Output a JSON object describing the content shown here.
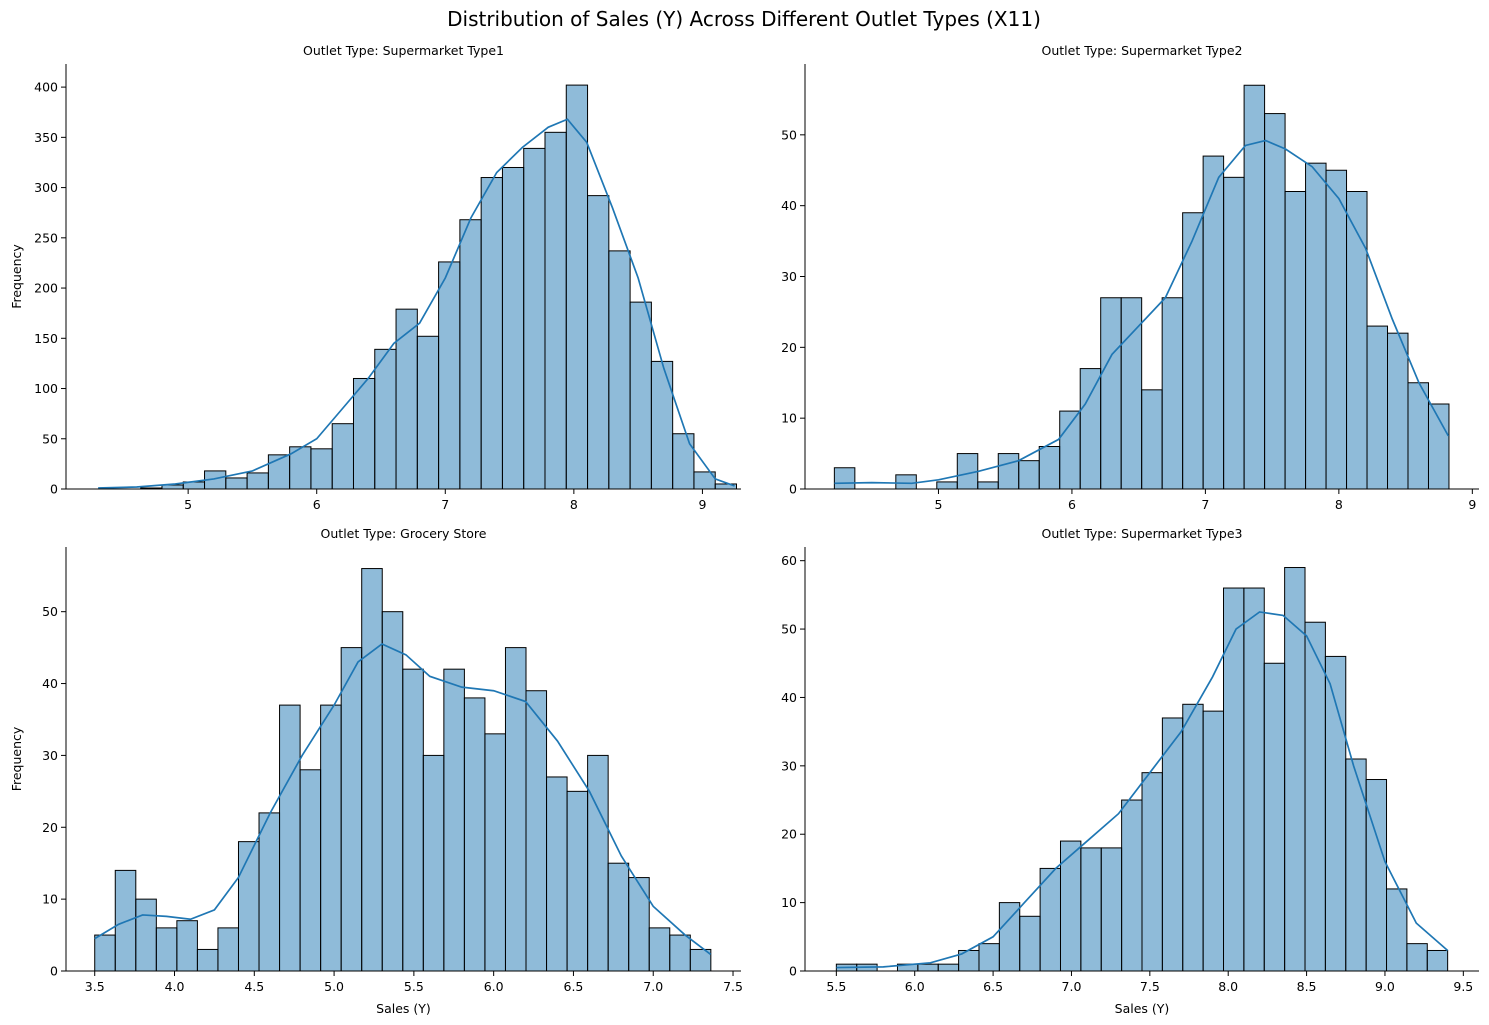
{
  "figure": {
    "title": "Distribution of Sales (Y) Across Different Outlet Types (X11)"
  },
  "colors": {
    "bar": "#1f77b4",
    "line": "#1f77b4",
    "edge": "#000000"
  },
  "chart_data": [
    {
      "type": "bar",
      "title": "Outlet Type: Supermarket Type1",
      "xlabel": "",
      "ylabel": "Frequency",
      "xlim": [
        4.05,
        9.3
      ],
      "ylim": [
        0,
        423
      ],
      "xticks": [
        5,
        6,
        7,
        8,
        9
      ],
      "yticks": [
        0,
        50,
        100,
        150,
        200,
        250,
        300,
        350,
        400
      ],
      "bin_start": 4.3,
      "bin_width": 0.1655,
      "values": [
        0,
        0,
        1,
        4,
        7,
        18,
        11,
        16,
        34,
        42,
        40,
        65,
        110,
        139,
        179,
        152,
        226,
        268,
        310,
        320,
        339,
        355,
        402,
        292,
        237,
        186,
        127,
        55,
        17,
        5
      ],
      "kde": [
        [
          4.3,
          1
        ],
        [
          4.6,
          2
        ],
        [
          4.9,
          5
        ],
        [
          5.2,
          10
        ],
        [
          5.5,
          18
        ],
        [
          5.8,
          35
        ],
        [
          6.0,
          50
        ],
        [
          6.2,
          80
        ],
        [
          6.4,
          110
        ],
        [
          6.6,
          145
        ],
        [
          6.8,
          165
        ],
        [
          7.0,
          210
        ],
        [
          7.2,
          270
        ],
        [
          7.4,
          315
        ],
        [
          7.6,
          340
        ],
        [
          7.8,
          360
        ],
        [
          7.95,
          368
        ],
        [
          8.1,
          345
        ],
        [
          8.3,
          280
        ],
        [
          8.5,
          210
        ],
        [
          8.7,
          120
        ],
        [
          8.9,
          45
        ],
        [
          9.1,
          10
        ],
        [
          9.25,
          3
        ]
      ]
    },
    {
      "type": "bar",
      "title": "Outlet Type: Supermarket Type2",
      "xlabel": "",
      "ylabel": "",
      "xlim": [
        4.0,
        9.05
      ],
      "ylim": [
        0,
        60
      ],
      "xticks": [
        5,
        6,
        7,
        8,
        9
      ],
      "yticks": [
        0,
        10,
        20,
        30,
        40,
        50
      ],
      "bin_start": 4.22,
      "bin_width": 0.1535,
      "values": [
        3,
        0,
        0,
        2,
        0,
        1,
        5,
        1,
        5,
        4,
        6,
        11,
        17,
        27,
        27,
        14,
        27,
        39,
        47,
        44,
        57,
        53,
        42,
        46,
        45,
        42,
        23,
        22,
        15,
        12
      ],
      "kde": [
        [
          4.22,
          0.8
        ],
        [
          4.5,
          0.9
        ],
        [
          4.8,
          0.8
        ],
        [
          5.0,
          1.3
        ],
        [
          5.3,
          2.5
        ],
        [
          5.6,
          4
        ],
        [
          5.9,
          7
        ],
        [
          6.1,
          12
        ],
        [
          6.3,
          19
        ],
        [
          6.5,
          23
        ],
        [
          6.7,
          27
        ],
        [
          6.9,
          35
        ],
        [
          7.1,
          44
        ],
        [
          7.3,
          48.5
        ],
        [
          7.45,
          49.2
        ],
        [
          7.6,
          48
        ],
        [
          7.8,
          45.5
        ],
        [
          8.0,
          41
        ],
        [
          8.2,
          34
        ],
        [
          8.4,
          24
        ],
        [
          8.6,
          15
        ],
        [
          8.82,
          7.5
        ]
      ]
    },
    {
      "type": "bar",
      "title": "Outlet Type: Grocery Store",
      "xlabel": "Sales (Y)",
      "ylabel": "Frequency",
      "xlim": [
        3.32,
        7.55
      ],
      "ylim": [
        0,
        59
      ],
      "xticks": [
        3.5,
        4.0,
        4.5,
        5.0,
        5.5,
        6.0,
        6.5,
        7.0,
        7.5
      ],
      "yticks": [
        0,
        10,
        20,
        30,
        40,
        50
      ],
      "bin_start": 3.5,
      "bin_width": 0.1287,
      "values": [
        5,
        14,
        10,
        6,
        7,
        3,
        6,
        18,
        22,
        37,
        28,
        37,
        45,
        56,
        50,
        42,
        30,
        42,
        38,
        33,
        45,
        39,
        27,
        25,
        30,
        15,
        13,
        6,
        5,
        3
      ],
      "kde": [
        [
          3.5,
          4.5
        ],
        [
          3.65,
          6.5
        ],
        [
          3.8,
          7.8
        ],
        [
          3.95,
          7.6
        ],
        [
          4.1,
          7.2
        ],
        [
          4.25,
          8.5
        ],
        [
          4.4,
          13
        ],
        [
          4.6,
          22
        ],
        [
          4.8,
          30
        ],
        [
          5.0,
          37
        ],
        [
          5.15,
          43
        ],
        [
          5.3,
          45.5
        ],
        [
          5.45,
          44
        ],
        [
          5.6,
          41
        ],
        [
          5.8,
          39.5
        ],
        [
          6.0,
          39
        ],
        [
          6.2,
          37.5
        ],
        [
          6.4,
          32
        ],
        [
          6.6,
          25
        ],
        [
          6.8,
          16
        ],
        [
          7.0,
          9
        ],
        [
          7.2,
          5
        ],
        [
          7.36,
          2.3
        ]
      ]
    },
    {
      "type": "bar",
      "title": "Outlet Type: Supermarket Type3",
      "xlabel": "Sales (Y)",
      "ylabel": "",
      "xlim": [
        5.3,
        9.6
      ],
      "ylim": [
        0,
        62
      ],
      "xticks": [
        5.5,
        6.0,
        6.5,
        7.0,
        7.5,
        8.0,
        8.5,
        9.0,
        9.5
      ],
      "yticks": [
        0,
        10,
        20,
        30,
        40,
        50,
        60
      ],
      "bin_start": 5.5,
      "bin_width": 0.13,
      "values": [
        1,
        1,
        0,
        1,
        1,
        1,
        3,
        4,
        10,
        8,
        15,
        19,
        18,
        18,
        25,
        29,
        37,
        39,
        38,
        56,
        56,
        45,
        59,
        51,
        46,
        31,
        28,
        12,
        4,
        3
      ],
      "kde": [
        [
          5.5,
          0.5
        ],
        [
          5.8,
          0.6
        ],
        [
          6.1,
          1.2
        ],
        [
          6.3,
          2.5
        ],
        [
          6.5,
          5
        ],
        [
          6.7,
          10
        ],
        [
          6.9,
          15
        ],
        [
          7.1,
          19
        ],
        [
          7.3,
          23
        ],
        [
          7.5,
          29
        ],
        [
          7.7,
          35
        ],
        [
          7.9,
          43
        ],
        [
          8.05,
          50
        ],
        [
          8.2,
          52.5
        ],
        [
          8.35,
          52
        ],
        [
          8.5,
          49
        ],
        [
          8.65,
          42
        ],
        [
          8.8,
          30
        ],
        [
          9.0,
          16
        ],
        [
          9.2,
          7
        ],
        [
          9.4,
          3
        ]
      ]
    }
  ]
}
